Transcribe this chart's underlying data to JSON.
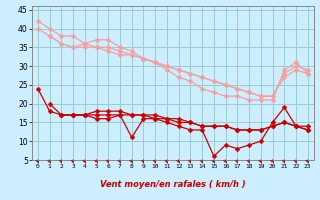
{
  "xlabel": "Vent moyen/en rafales ( km/h )",
  "background_color": "#cceeff",
  "grid_color": "#99cccc",
  "xlim": [
    -0.5,
    23.5
  ],
  "ylim": [
    5,
    46
  ],
  "yticks": [
    5,
    10,
    15,
    20,
    25,
    30,
    35,
    40,
    45
  ],
  "xticks": [
    0,
    1,
    2,
    3,
    4,
    5,
    6,
    7,
    8,
    9,
    10,
    11,
    12,
    13,
    14,
    15,
    16,
    17,
    18,
    19,
    20,
    21,
    22,
    23
  ],
  "lines_pink": [
    [
      42,
      40,
      38,
      38,
      36,
      37,
      37,
      35,
      34,
      32,
      31,
      29,
      27,
      26,
      24,
      23,
      22,
      22,
      21,
      21,
      21,
      29,
      31,
      28
    ],
    [
      40,
      38,
      36,
      35,
      35,
      35,
      34,
      33,
      33,
      32,
      31,
      30,
      29,
      28,
      27,
      26,
      25,
      24,
      23,
      22,
      22,
      27,
      29,
      28
    ],
    [
      null,
      38,
      36,
      35,
      36,
      35,
      35,
      34,
      33,
      32,
      31,
      30,
      29,
      28,
      27,
      26,
      25,
      24,
      23,
      22,
      22,
      28,
      30,
      29
    ]
  ],
  "lines_red": [
    [
      24,
      18,
      17,
      17,
      17,
      16,
      16,
      17,
      11,
      16,
      16,
      15,
      14,
      13,
      13,
      6,
      9,
      8,
      9,
      10,
      15,
      19,
      14,
      13
    ],
    [
      null,
      20,
      17,
      17,
      17,
      18,
      18,
      18,
      17,
      17,
      17,
      16,
      16,
      15,
      14,
      14,
      14,
      13,
      13,
      13,
      14,
      15,
      14,
      14
    ],
    [
      null,
      null,
      17,
      17,
      17,
      17,
      17,
      17,
      17,
      17,
      16,
      16,
      15,
      15,
      14,
      14,
      14,
      13,
      13,
      13,
      14,
      15,
      14,
      13
    ]
  ],
  "pink_color": "#f4a0a0",
  "red_color": "#cc0000",
  "marker_size": 2.5,
  "line_width": 0.9
}
